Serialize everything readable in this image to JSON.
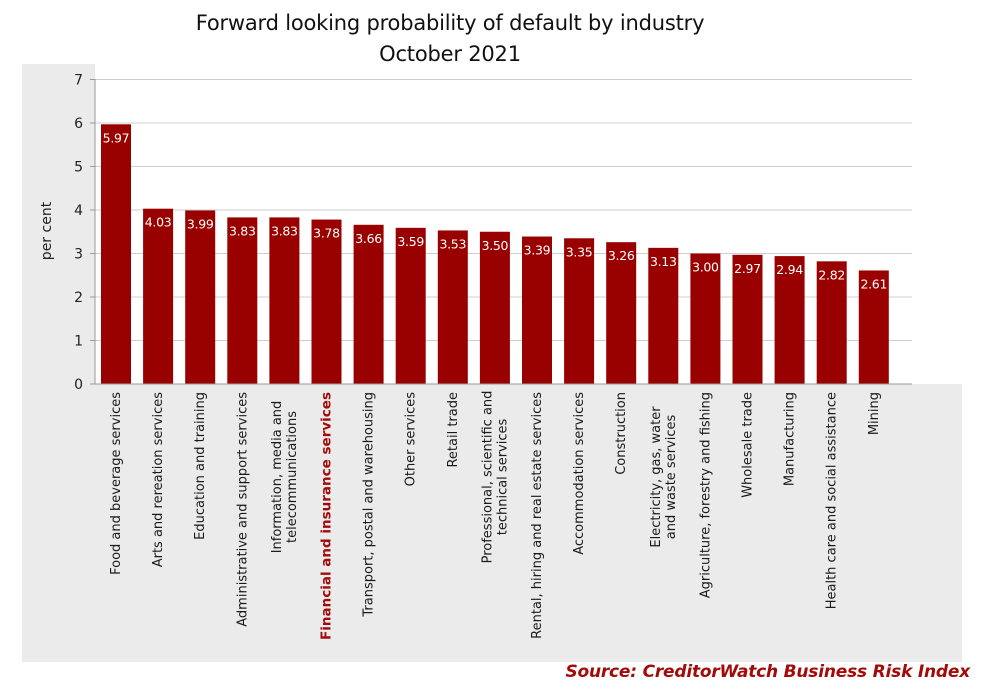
{
  "chart_data": {
    "type": "bar",
    "title": "Forward looking probability of default by industry",
    "subtitle": "October 2021",
    "xlabel": "",
    "ylabel": "per cent",
    "ylim": [
      0,
      7
    ],
    "yticks": [
      0,
      1,
      2,
      3,
      4,
      5,
      6,
      7
    ],
    "grid": true,
    "legend": "none",
    "bar_color": "#990000",
    "highlight_label_color": "#a30b0b",
    "highlight_category": "Financial and insurance services",
    "categories": [
      "Food and beverage services",
      "Arts and rereation services",
      "Education and training",
      "Administrative and support services",
      "Information, media and telecommunications",
      "Financial and insurance services",
      "Transport, postal and warehousing",
      "Other services",
      "Retail trade",
      "Professional, scientific and technical services",
      "Rental, hiring and real estate services",
      "Accommodation services",
      "Construction",
      "Electricity, gas, water and waste services",
      "Agriculture, forestry and fishing",
      "Wholesale trade",
      "Manufacturing",
      "Health care and social assistance",
      "Mining"
    ],
    "category_lines": [
      [
        "Food and beverage services"
      ],
      [
        "Arts and rereation services"
      ],
      [
        "Education and training"
      ],
      [
        "Administrative and support services"
      ],
      [
        "Information, media and",
        "telecommunications"
      ],
      [
        "Financial and insurance services"
      ],
      [
        "Transport, postal and warehousing"
      ],
      [
        "Other services"
      ],
      [
        "Retail trade"
      ],
      [
        "Professional, scientific and",
        "technical services"
      ],
      [
        "Rental, hiring and real estate services"
      ],
      [
        "Accommodation services"
      ],
      [
        "Construction"
      ],
      [
        "Electricity, gas, water",
        "and waste services"
      ],
      [
        "Agriculture, forestry and fishing"
      ],
      [
        "Wholesale trade"
      ],
      [
        "Manufacturing"
      ],
      [
        "Health care and social assistance"
      ],
      [
        "Mining"
      ]
    ],
    "values": [
      5.97,
      4.03,
      3.99,
      3.83,
      3.83,
      3.78,
      3.66,
      3.59,
      3.53,
      3.5,
      3.39,
      3.35,
      3.26,
      3.13,
      3.0,
      2.97,
      2.94,
      2.82,
      2.61
    ],
    "value_labels": [
      "5.97",
      "4.03",
      "3.99",
      "3.83",
      "3.83",
      "3.78",
      "3.66",
      "3.59",
      "3.53",
      "3.50",
      "3.39",
      "3.35",
      "3.26",
      "3.13",
      "3.00",
      "2.97",
      "2.94",
      "2.82",
      "2.61"
    ]
  },
  "source": "Source: CreditorWatch Business Risk Index"
}
